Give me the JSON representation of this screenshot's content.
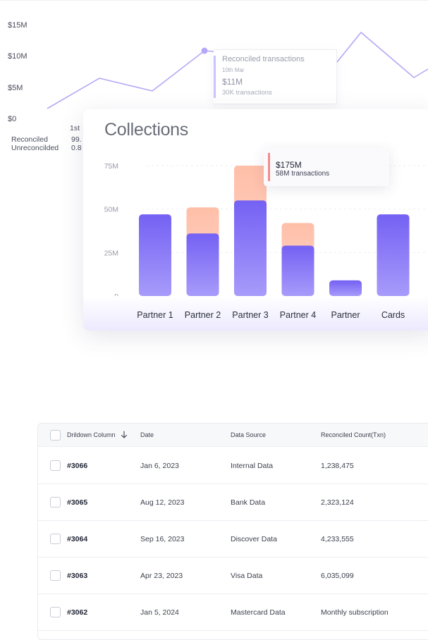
{
  "line_chart": {
    "y_ticks": [
      "$15M",
      "$10M",
      "$5M",
      "$0"
    ],
    "first_label": "1st",
    "legend": [
      {
        "label": "Reconciled",
        "value": "99."
      },
      {
        "label": "Unreconcilded",
        "value": "0.8"
      }
    ],
    "tooltip": {
      "title": "Reconciled transactions",
      "date": "10th Mar",
      "amount": "$11M",
      "count": "30K transactions"
    },
    "line_color": "#b3a9f6"
  },
  "collections": {
    "title": "Collections",
    "tooltip": {
      "amount": "$175M",
      "count": "58M transactions",
      "accent": "#f28b8b"
    },
    "colors": {
      "reconciled": "#7b68f5",
      "unreconciled": "#ffc1ad"
    }
  },
  "chart_data": {
    "type": "bar",
    "title": "Collections",
    "categories": [
      "Partner 1",
      "Partner 2",
      "Partner 3",
      "Partner 4",
      "Partner",
      "Cards"
    ],
    "y_ticks": [
      "75M",
      "50M",
      "25M",
      "0"
    ],
    "ylim": [
      0,
      75
    ],
    "stacked": true,
    "series": [
      {
        "values": [
          47,
          36,
          55,
          29,
          9,
          47
        ]
      },
      {
        "values": [
          0,
          15,
          20,
          13,
          0,
          0
        ]
      }
    ],
    "grid": true
  },
  "table": {
    "columns": [
      "Drildown Column",
      "Date",
      "Data Source",
      "Reconciled Count(Txn)"
    ],
    "rows": [
      {
        "id": "#3066",
        "date": "Jan 6, 2023",
        "source": "Internal Data",
        "count": "1,238,475"
      },
      {
        "id": "#3065",
        "date": "Aug 12, 2023",
        "source": "Bank Data",
        "count": "2,323,124"
      },
      {
        "id": "#3064",
        "date": "Sep 16, 2023",
        "source": "Discover Data",
        "count": "4,233,555"
      },
      {
        "id": "#3063",
        "date": "Apr 23, 2023",
        "source": "Visa Data",
        "count": "6,035,099"
      },
      {
        "id": "#3062",
        "date": "Jan 5, 2024",
        "source": "Mastercard Data",
        "count": "Monthly subscription"
      }
    ]
  }
}
